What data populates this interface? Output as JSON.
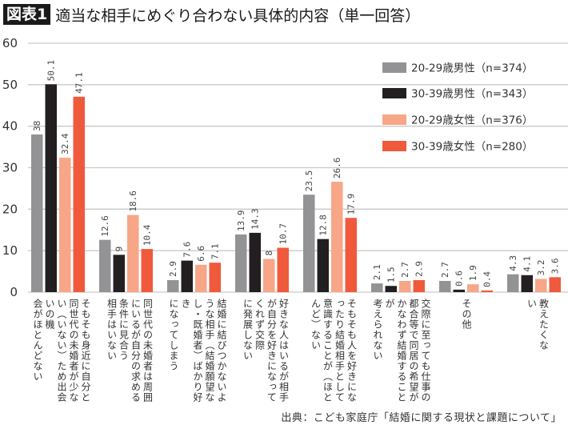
{
  "header": {
    "badge": "図表1",
    "title": "適当な相手にめぐり合わない具体的内容（単一回答）"
  },
  "source": "出典：こども家庭庁「結婚に関する現状と課題について」",
  "chart_data": {
    "type": "bar",
    "title": "適当な相手にめぐり合わない具体的内容（単一回答）",
    "xlabel": "",
    "ylabel": "",
    "ylim": [
      0,
      60
    ],
    "yticks": [
      0,
      10,
      20,
      30,
      40,
      50,
      60
    ],
    "grid": true,
    "legend_position": "top-right",
    "categories": [
      "そもそも身近に自分と同世代の未婚者が少ない（いない）ため出会いの機会がほとんどない",
      "同世代の未婚者は周囲にいるが自分の求める条件に見合う相手はいない",
      "結婚に結びつかないような相手（結婚願望なし・既婚者）ばかり好きになってしまう",
      "好きな人はいるが相手が自分を好きになってくれず交際に発展しない",
      "そもそも人を好きになったり結婚相手として意識することが（ほとんど）ない",
      "交際に至っても仕事の都合等で同居の希望がかなわず結婚することが考えられない",
      "その他",
      "教えたくない"
    ],
    "series": [
      {
        "name": "20-29歳男性（n=374）",
        "color": "#939395",
        "values": [
          38,
          12.6,
          2.9,
          13.9,
          23.5,
          2.1,
          2.7,
          4.3
        ]
      },
      {
        "name": "30-39歳男性（n=343）",
        "color": "#231f20",
        "values": [
          50.1,
          9,
          7.6,
          14.3,
          12.8,
          1.5,
          0.6,
          4.1
        ]
      },
      {
        "name": "20-29歳女性（n=376）",
        "color": "#f7a688",
        "values": [
          32.4,
          18.6,
          6.6,
          8,
          26.6,
          2.7,
          1.9,
          3.2
        ]
      },
      {
        "name": "30-39歳女性（n=280）",
        "color": "#ef5a3c",
        "values": [
          47.1,
          10.4,
          7.1,
          10.7,
          17.9,
          2.9,
          0.4,
          3.6
        ]
      }
    ],
    "value_labels": [
      [
        "38",
        "12.6",
        "2.9",
        "13.9",
        "23.5",
        "2.1",
        "2.7",
        "4.3"
      ],
      [
        "50.1",
        "9",
        "7.6",
        "14.3",
        "12.8",
        "1.5",
        "0.6",
        "4.1"
      ],
      [
        "32.4",
        "18.6",
        "6.6",
        "8",
        "26.6",
        "2.7",
        "1.9",
        "3.2"
      ],
      [
        "47.1",
        "10.4",
        "7.1",
        "10.7",
        "17.9",
        "2.9",
        "0.4",
        "3.6"
      ]
    ]
  }
}
